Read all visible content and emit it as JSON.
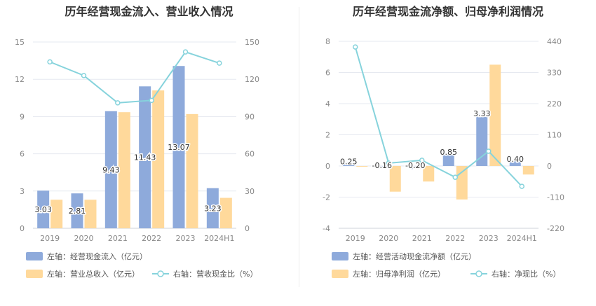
{
  "chart_data": [
    {
      "type": "bar",
      "title": "历年经营现金流入、营业收入情况",
      "categories": [
        "2019",
        "2020",
        "2021",
        "2022",
        "2023",
        "2024H1"
      ],
      "left_axis": {
        "ticks": [
          "0",
          "3",
          "6",
          "9",
          "12",
          "15"
        ],
        "ylim": [
          0,
          15
        ]
      },
      "right_axis": {
        "ticks": [
          "0",
          "30",
          "60",
          "90",
          "120",
          "150"
        ],
        "ylim": [
          0,
          150
        ]
      },
      "series": [
        {
          "name": "左轴：经营现金流入（亿元）",
          "kind": "bar",
          "axis": "left",
          "color": "#8eaadb",
          "values": [
            3.03,
            2.81,
            9.43,
            11.43,
            13.07,
            3.23
          ],
          "labels": [
            "3.03",
            "2.81",
            "9.43",
            "11.43",
            "13.07",
            "3.23"
          ]
        },
        {
          "name": "左轴：营业总收入（亿元）",
          "kind": "bar",
          "axis": "left",
          "color": "#ffd99b",
          "values": [
            2.3,
            2.3,
            9.35,
            11.1,
            9.2,
            2.45
          ]
        },
        {
          "name": "右轴：营收现金比（%）",
          "kind": "line",
          "axis": "right",
          "color": "#86d3dc",
          "values": [
            134,
            123,
            101,
            103,
            142,
            133
          ]
        }
      ]
    },
    {
      "type": "bar",
      "title": "历年经营现金流净额、归母净利润情况",
      "categories": [
        "2019",
        "2020",
        "2021",
        "2022",
        "2023",
        "2024H1"
      ],
      "left_axis": {
        "ticks": [
          "-4",
          "-2",
          "0",
          "2",
          "4",
          "6",
          "8"
        ],
        "ylim": [
          -4,
          8
        ]
      },
      "right_axis": {
        "ticks": [
          "-220",
          "-110",
          "0",
          "110",
          "220",
          "330",
          "440"
        ],
        "ylim": [
          -220,
          440
        ]
      },
      "series": [
        {
          "name": "左轴：经营活动现金流净额（亿元）",
          "kind": "bar",
          "axis": "left",
          "color": "#8eaadb",
          "values": [
            0.25,
            -0.16,
            -0.2,
            0.85,
            3.33,
            0.4
          ],
          "labels": [
            "0.25",
            "-0.16",
            "-0.20",
            "0.85",
            "3.33",
            "0.40"
          ]
        },
        {
          "name": "左轴：归母净利润（亿元）",
          "kind": "bar",
          "axis": "left",
          "color": "#ffd99b",
          "values": [
            -0.05,
            -1.65,
            -1.0,
            -2.15,
            6.5,
            -0.55
          ]
        },
        {
          "name": "右轴：净现比（%）",
          "kind": "line",
          "axis": "right",
          "color": "#86d3dc",
          "values": [
            420,
            10,
            20,
            -40,
            52,
            -72
          ]
        }
      ]
    }
  ]
}
